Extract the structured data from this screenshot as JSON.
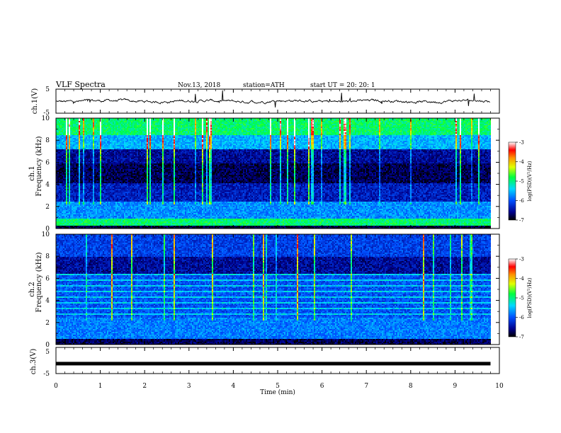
{
  "header": {
    "title": "VLF  Spectra",
    "date": "Nov.13, 2018",
    "station": "station=ATH",
    "start_ut": "start  UT  =    20: 20: 1"
  },
  "chart_data": [
    {
      "type": "line",
      "name": "ch1-waveform",
      "ylabel": "ch.1(V)",
      "ylim": [
        -5,
        5
      ],
      "yticks": [
        "5",
        "-5"
      ],
      "xlim": [
        0,
        10
      ],
      "data_end_min": 9.8
    },
    {
      "type": "heatmap",
      "name": "ch1-spectrogram",
      "ylabel_top": "ch.1",
      "ylabel": "Frequency  (kHz)",
      "ylim": [
        0,
        10
      ],
      "yticks": [
        "0",
        "2",
        "4",
        "6",
        "8",
        "10"
      ],
      "xlim": [
        0,
        10
      ],
      "data_end_min": 9.8,
      "colorbar": {
        "label": "log(PSD)(V²/Hz)",
        "range": [
          -7,
          -3
        ],
        "ticks": [
          "-3",
          "-4",
          "-5",
          "-6",
          "-7"
        ]
      }
    },
    {
      "type": "heatmap",
      "name": "ch2-spectrogram",
      "ylabel_top": "ch.2",
      "ylabel": "Frequency  (kHz)",
      "ylim": [
        0,
        10
      ],
      "yticks": [
        "0",
        "2",
        "4",
        "6",
        "8",
        "10"
      ],
      "xlim": [
        0,
        10
      ],
      "data_end_min": 9.8,
      "colorbar": {
        "label": "log(PSD)(V²/Hz)",
        "range": [
          -7,
          -3
        ],
        "ticks": [
          "-3",
          "-4",
          "-5",
          "-6",
          "-7"
        ]
      }
    },
    {
      "type": "line",
      "name": "ch3-waveform",
      "ylabel": "ch.3(V)",
      "ylim": [
        -5,
        5
      ],
      "yticks": [
        "5",
        "-5"
      ],
      "xlim": [
        0,
        10
      ],
      "data_end_min": 9.8,
      "level_v": -1.2
    }
  ],
  "xaxis": {
    "label": "Time  (min)",
    "ticks": [
      "0",
      "1",
      "2",
      "3",
      "4",
      "5",
      "6",
      "7",
      "8",
      "9",
      "10"
    ]
  }
}
